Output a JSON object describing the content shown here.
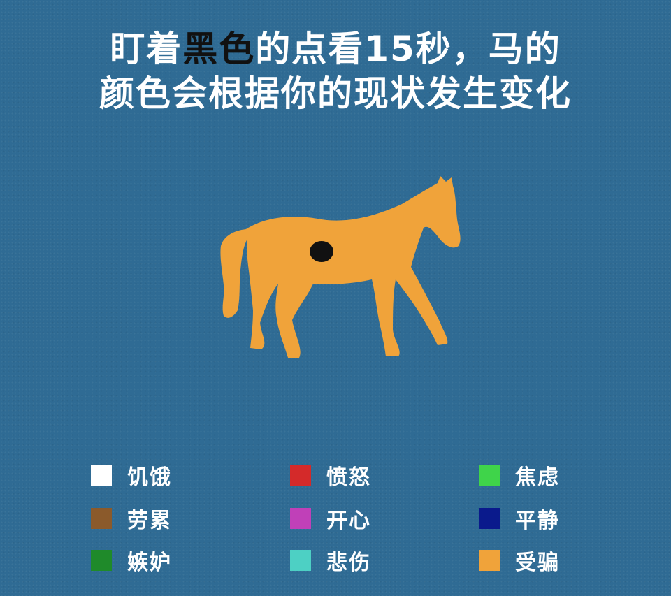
{
  "title": {
    "line1_pre": "盯着",
    "line1_highlight": "黑色",
    "line1_post": "的点看15秒，马的",
    "line2": "颜色会根据你的现状发生变化"
  },
  "image": {
    "horse_color": "#f0a33a",
    "dot_color": "#111111",
    "background_color": "#2f6b94"
  },
  "legend": [
    {
      "label": "饥饿",
      "color": "#ffffff"
    },
    {
      "label": "劳累",
      "color": "#8b5a2b"
    },
    {
      "label": "嫉妒",
      "color": "#1f8a2a"
    },
    {
      "label": "愤怒",
      "color": "#d42a2a"
    },
    {
      "label": "开心",
      "color": "#c040b8"
    },
    {
      "label": "悲伤",
      "color": "#4dd0c4"
    },
    {
      "label": "焦虑",
      "color": "#3fd44a"
    },
    {
      "label": "平静",
      "color": "#0a1a8c"
    },
    {
      "label": "受骗",
      "color": "#f0a33a"
    }
  ]
}
